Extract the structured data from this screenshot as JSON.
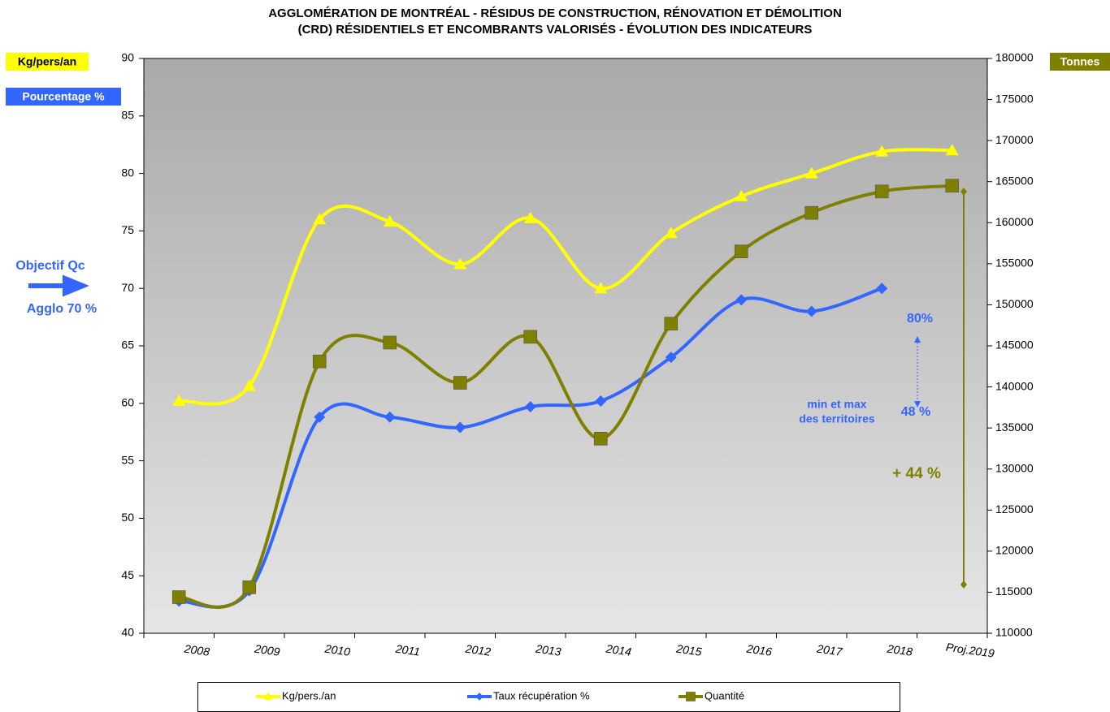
{
  "chart_data": {
    "type": "line",
    "title": "AGGLOMÉRATION  DE MONTRÉAL - RÉSIDUS DE CONSTRUCTION, RÉNOVATION ET DÉMOLITION",
    "subtitle": "(CRD) RÉSIDENTIELS ET ENCOMBRANTS VALORISÉS - ÉVOLUTION DES INDICATEURS",
    "y_label": "Kg/pers/an",
    "y_label2": "Pourcentage %",
    "y2_label": "Tonnes",
    "categories": [
      "2008",
      "2009",
      "2010",
      "2011",
      "2012",
      "2013",
      "2014",
      "2015",
      "2016",
      "2017",
      "2018",
      "Proj.2019"
    ],
    "series": [
      {
        "name": "Kg/pers./an",
        "color": "#ffff00",
        "marker": "triangle",
        "values": [
          60.2,
          61.5,
          76,
          75.8,
          72.1,
          76.1,
          70,
          74.8,
          78,
          80,
          81.9,
          82
        ]
      },
      {
        "name": "Taux récupération %",
        "color": "#3366ff",
        "marker": "diamond",
        "values": [
          42.8,
          43.7,
          58.8,
          58.8,
          57.9,
          59.7,
          60.2,
          64,
          69,
          68,
          70,
          null
        ]
      },
      {
        "name": "Quantité",
        "color": "#808000",
        "marker": "square",
        "axis": "y2",
        "values": [
          114400,
          115600,
          143100,
          145400,
          140500,
          146100,
          133700,
          147700,
          156500,
          161200,
          163800,
          164500
        ]
      }
    ],
    "ylim": [
      40,
      90
    ],
    "yticks": [
      40,
      45,
      50,
      55,
      60,
      65,
      70,
      75,
      80,
      85,
      90
    ],
    "y2lim": [
      110000,
      180000
    ],
    "y2ticks": [
      110000,
      115000,
      120000,
      125000,
      130000,
      135000,
      140000,
      145000,
      150000,
      155000,
      160000,
      165000,
      170000,
      175000,
      180000
    ],
    "legend": "bottom",
    "annotations": {
      "objectif": "Objectif Qc",
      "agglo": "Agglo 70 %",
      "max": "80%",
      "min": "48 %",
      "minmax": [
        "min et max",
        "des territoires"
      ],
      "increase": "+ 44 %"
    }
  }
}
